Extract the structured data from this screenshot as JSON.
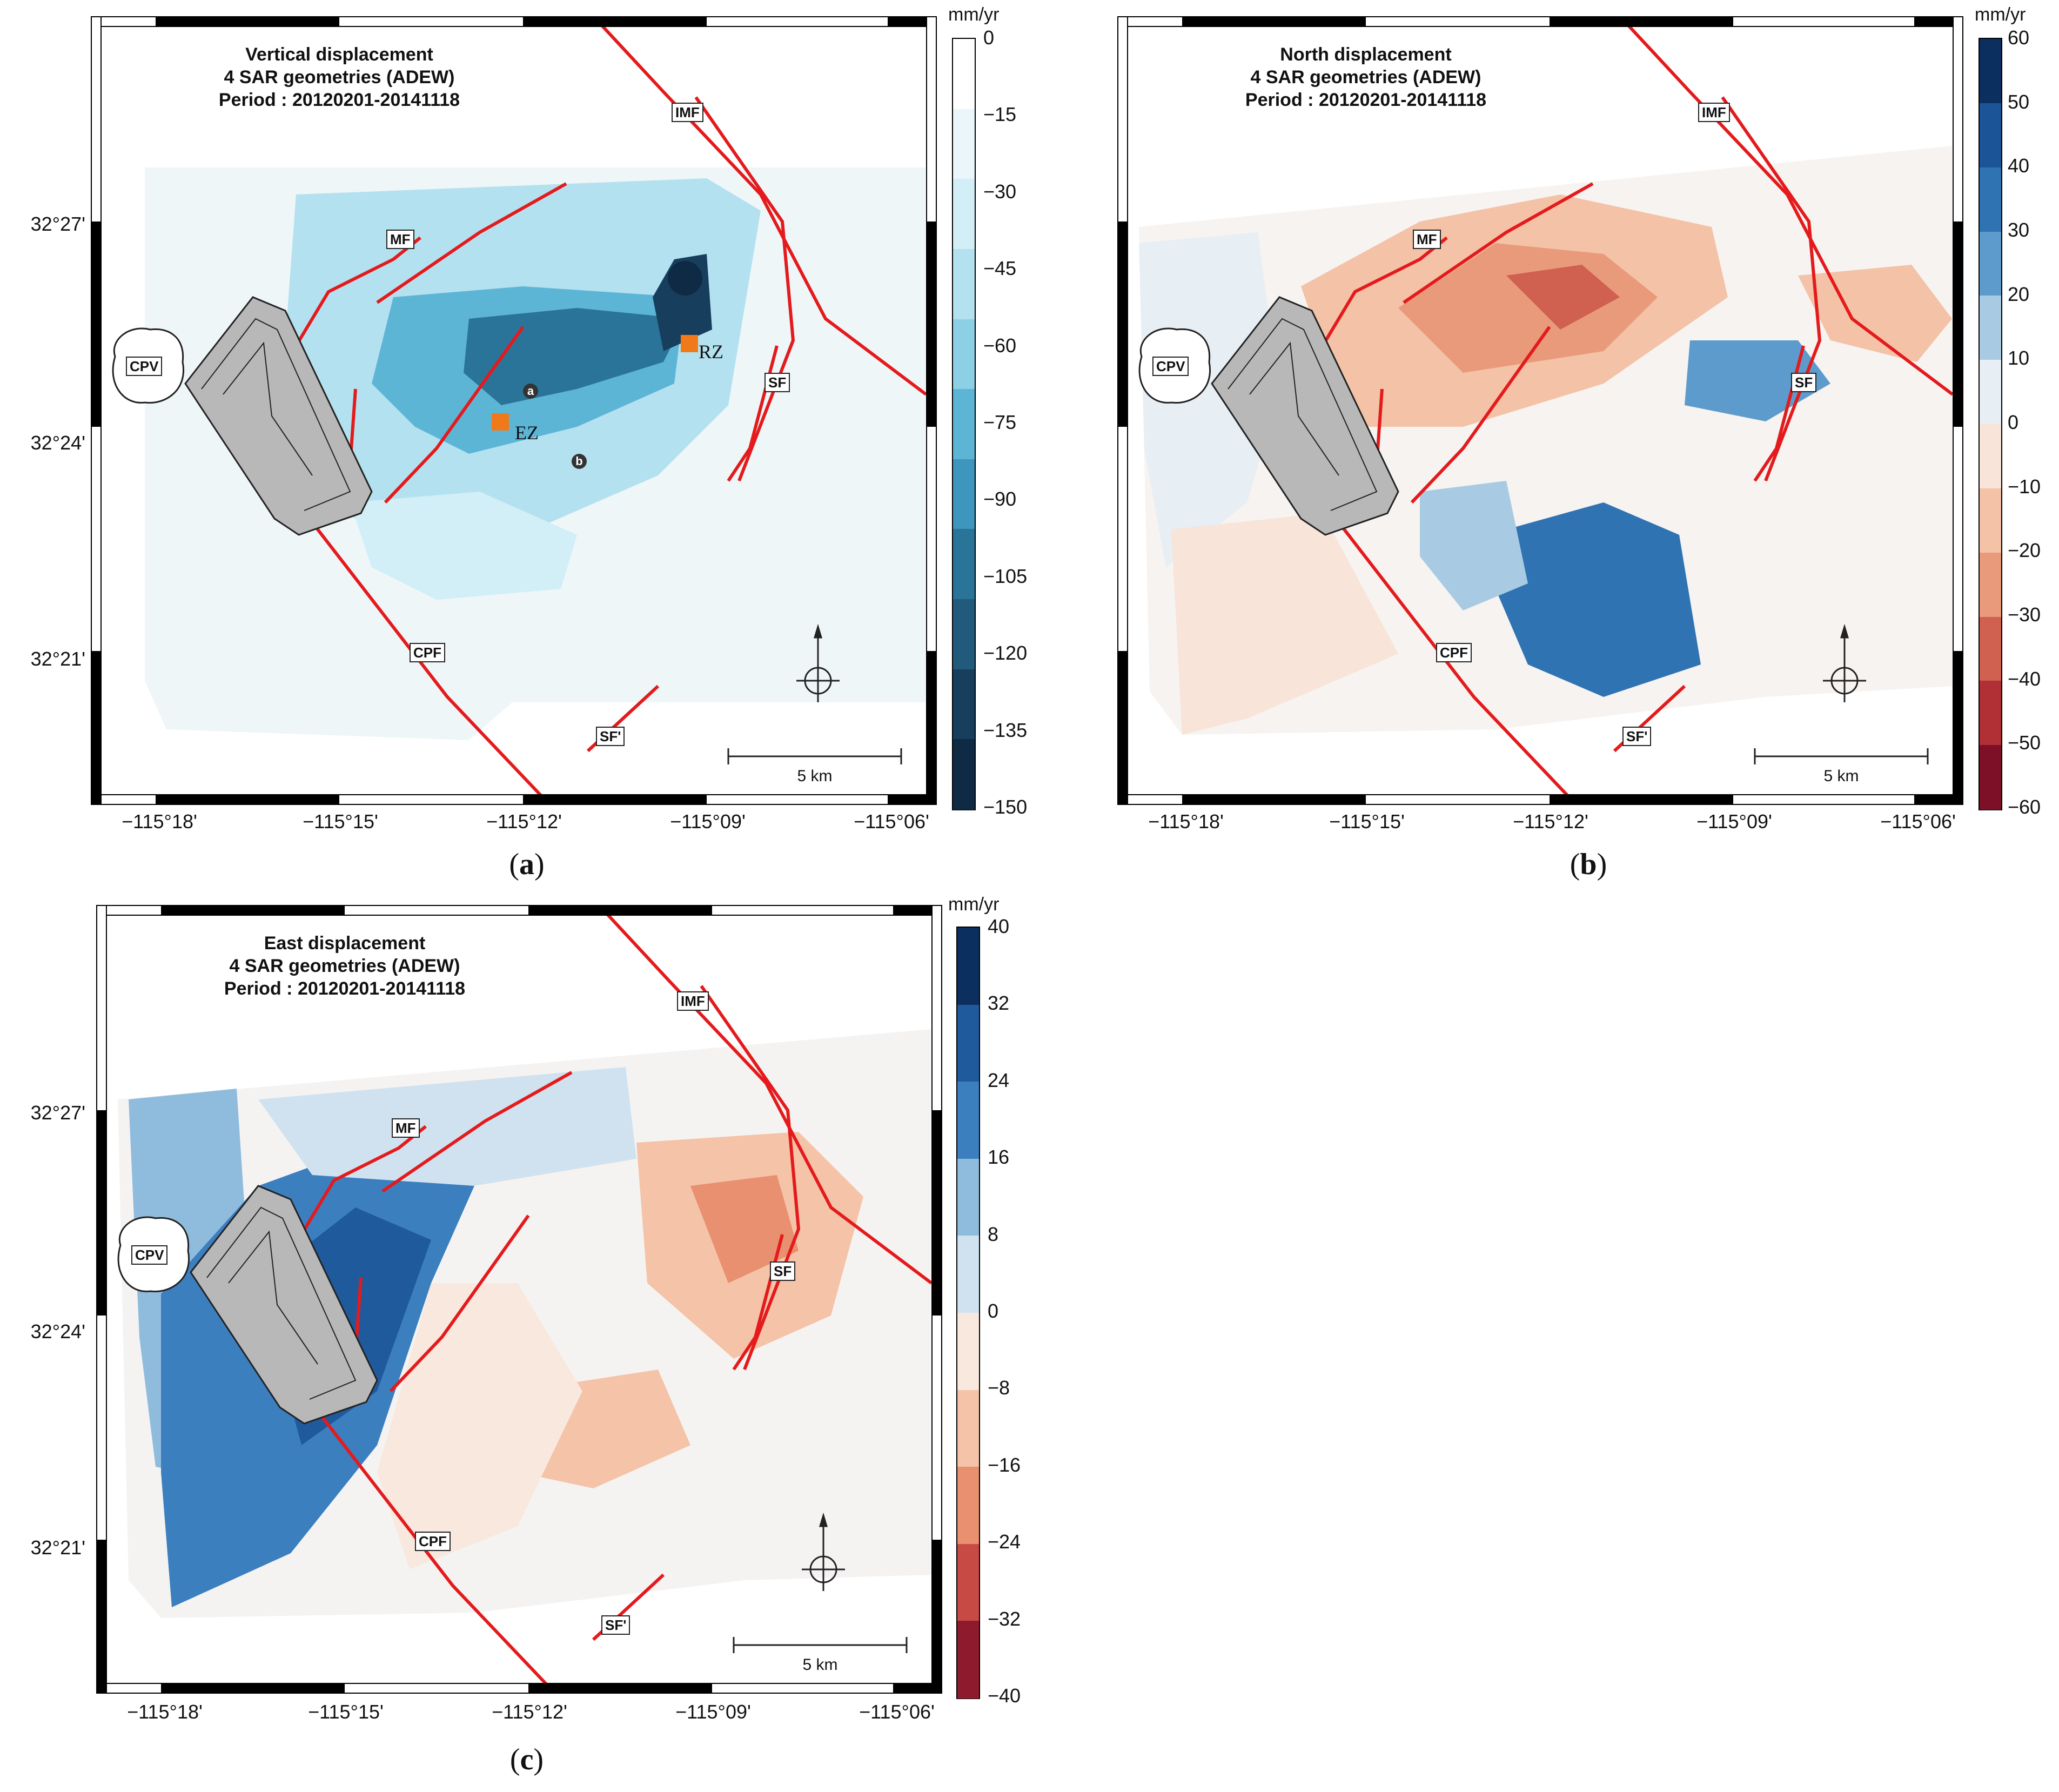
{
  "panels": [
    {
      "id": "a",
      "caption": "a",
      "title_lines": [
        "Vertical displacement",
        "4 SAR geometries (ADEW)",
        "Period : 20120201-20141118"
      ],
      "unit": "mm/yr",
      "colorbar_ticks": [
        "0",
        "−15",
        "−30",
        "−45",
        "−60",
        "−75",
        "−90",
        "−105",
        "−120",
        "−135",
        "−150"
      ],
      "colorbar_colors": [
        "#ffffff",
        "#eaf6fb",
        "#d2eef7",
        "#b4e1f0",
        "#8cd0e6",
        "#5db5d6",
        "#3e95bd",
        "#2b7499",
        "#215a7b",
        "#173f5d",
        "#0f2a44"
      ],
      "faults": [
        "IMF",
        "MF",
        "CPV",
        "SF",
        "CPF",
        "SF'"
      ],
      "zones": [
        "RZ",
        "EZ"
      ],
      "markers": [
        "a",
        "b"
      ],
      "scale_label": "5 km"
    },
    {
      "id": "b",
      "caption": "b",
      "title_lines": [
        "North displacement",
        "4 SAR geometries (ADEW)",
        "Period : 20120201-20141118"
      ],
      "unit": "mm/yr",
      "colorbar_ticks": [
        "60",
        "50",
        "40",
        "30",
        "20",
        "10",
        "0",
        "−10",
        "−20",
        "−30",
        "−40",
        "−50",
        "−60"
      ],
      "colorbar_colors": [
        "#0b305f",
        "#1b5597",
        "#2f73b3",
        "#5d9bcc",
        "#a8cbe3",
        "#e7eef4",
        "#f8e4d8",
        "#f4c2a6",
        "#e99a7a",
        "#d06050",
        "#b03035",
        "#7d1026"
      ],
      "faults": [
        "IMF",
        "MF",
        "CPV",
        "SF",
        "CPF",
        "SF'"
      ],
      "zones": [],
      "markers": [],
      "scale_label": "5 km"
    },
    {
      "id": "c",
      "caption": "c",
      "title_lines": [
        "East displacement",
        "4 SAR geometries (ADEW)",
        "Period : 20120201-20141118"
      ],
      "unit": "mm/yr",
      "colorbar_ticks": [
        "40",
        "32",
        "24",
        "16",
        "8",
        "0",
        "−8",
        "−16",
        "−24",
        "−32",
        "−40"
      ],
      "colorbar_colors": [
        "#0b305f",
        "#1f5b9c",
        "#3c7fbf",
        "#8fbcdc",
        "#d0e2ef",
        "#f8e8de",
        "#f4c3a8",
        "#e8906f",
        "#c84a44",
        "#8e1a2d"
      ],
      "faults": [
        "IMF",
        "MF",
        "CPV",
        "SF",
        "CPF",
        "SF'"
      ],
      "zones": [],
      "markers": [],
      "scale_label": "5 km"
    }
  ],
  "axes": {
    "lon_ticks": [
      "−115°18'",
      "−115°15'",
      "−115°12'",
      "−115°09'",
      "−115°06'"
    ],
    "lat_ticks": [
      "32°27'",
      "32°24'",
      "32°21'"
    ]
  },
  "colors": {
    "fault": "#e41a1c",
    "plant": "#b8b8b8",
    "ez_rz_marker": "#f07a1a"
  }
}
